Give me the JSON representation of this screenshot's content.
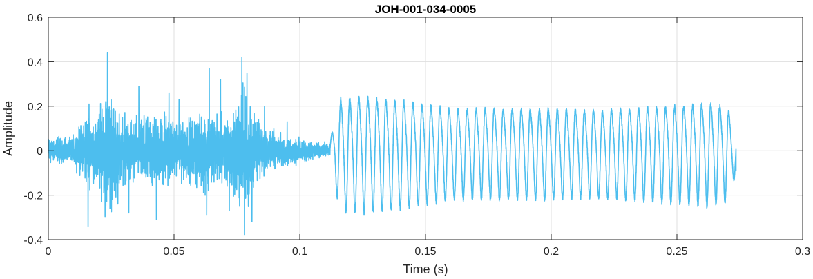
{
  "chart_data": {
    "type": "line",
    "title": "JOH-001-034-0005",
    "xlabel": "Time (s)",
    "ylabel": "Amplitude",
    "xlim": [
      0,
      0.3
    ],
    "ylim": [
      -0.4,
      0.6
    ],
    "x_ticks": [
      0,
      0.05,
      0.1,
      0.15,
      0.2,
      0.25,
      0.3
    ],
    "x_tick_labels": [
      "0",
      "0.05",
      "0.1",
      "0.15",
      "0.2",
      "0.25",
      "0.3"
    ],
    "y_ticks": [
      -0.4,
      -0.2,
      0,
      0.2,
      0.4,
      0.6
    ],
    "y_tick_labels": [
      "-0.4",
      "-0.2",
      "0",
      "0.2",
      "0.4",
      "0.6"
    ],
    "grid": true,
    "line_color": "#4DBEEE",
    "series": [
      {
        "segments": [
          {
            "x_start": 0,
            "x_end": 0.112,
            "kind": "noise",
            "envelope": [
              [
                0.0,
                0.06
              ],
              [
                0.01,
                0.07
              ],
              [
                0.015,
                0.16
              ],
              [
                0.02,
                0.2
              ],
              [
                0.023,
                0.32
              ],
              [
                0.03,
                0.18
              ],
              [
                0.037,
                0.16
              ],
              [
                0.045,
                0.2
              ],
              [
                0.05,
                0.15
              ],
              [
                0.058,
                0.16
              ],
              [
                0.063,
                0.22
              ],
              [
                0.068,
                0.18
              ],
              [
                0.073,
                0.2
              ],
              [
                0.078,
                0.32
              ],
              [
                0.085,
                0.12
              ],
              [
                0.095,
                0.08
              ],
              [
                0.105,
                0.05
              ],
              [
                0.112,
                0.03
              ]
            ],
            "spikes": [
              [
                0.0235,
                0.44
              ],
              [
                0.0245,
                -0.26
              ],
              [
                0.0162,
                0.21
              ],
              [
                0.0158,
                -0.34
              ],
              [
                0.032,
                -0.28
              ],
              [
                0.036,
                0.29
              ],
              [
                0.043,
                -0.31
              ],
              [
                0.048,
                0.26
              ],
              [
                0.052,
                0.23
              ],
              [
                0.064,
                0.37
              ],
              [
                0.063,
                -0.29
              ],
              [
                0.0685,
                0.32
              ],
              [
                0.072,
                -0.27
              ],
              [
                0.077,
                0.42
              ],
              [
                0.078,
                -0.38
              ],
              [
                0.079,
                0.35
              ],
              [
                0.081,
                -0.32
              ],
              [
                0.086,
                0.2
              ],
              [
                0.095,
                0.13
              ]
            ]
          },
          {
            "x_start": 0.112,
            "x_end": 0.2735,
            "kind": "oscillation",
            "cycles": 45,
            "envelope": [
              [
                0.112,
                0.05
              ],
              [
                0.116,
                0.26
              ],
              [
                0.125,
                0.27
              ],
              [
                0.14,
                0.25
              ],
              [
                0.16,
                0.21
              ],
              [
                0.18,
                0.21
              ],
              [
                0.2,
                0.21
              ],
              [
                0.22,
                0.2
              ],
              [
                0.24,
                0.22
              ],
              [
                0.255,
                0.23
              ],
              [
                0.262,
                0.24
              ],
              [
                0.27,
                0.22
              ],
              [
                0.2735,
                0.1
              ]
            ],
            "end_value": -0.09
          }
        ]
      }
    ]
  }
}
